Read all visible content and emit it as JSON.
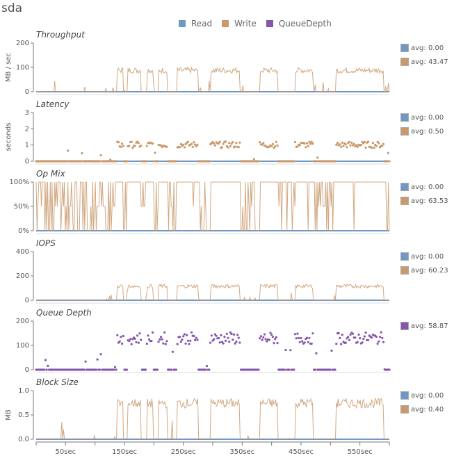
{
  "device": "sda",
  "legend": [
    {
      "name": "Read",
      "color": "#7197c4"
    },
    {
      "name": "Write",
      "color": "#c9996b"
    },
    {
      "name": "QueueDepth",
      "color": "#8656ab"
    }
  ],
  "colors": {
    "read": "#7197c4",
    "write": "#c9996b",
    "queue": "#8656ab"
  },
  "chart_data": {
    "type": "line",
    "x_unit": "sec",
    "xlim": [
      0,
      600
    ],
    "x_ticks": [
      0,
      50,
      100,
      150,
      200,
      250,
      300,
      350,
      400,
      450,
      500,
      550,
      600
    ],
    "x_tick_labels": [
      "",
      "50sec",
      "",
      "150sec",
      "",
      "250sec",
      "",
      "350sec",
      "",
      "450sec",
      "",
      "550sec",
      ""
    ],
    "active_bursts_sec": [
      [
        138,
        148
      ],
      [
        156,
        168
      ],
      [
        168,
        178
      ],
      [
        188,
        198
      ],
      [
        208,
        222
      ],
      [
        240,
        275
      ],
      [
        296,
        346
      ],
      [
        380,
        410
      ],
      [
        440,
        470
      ],
      [
        510,
        590
      ]
    ],
    "panels": [
      {
        "id": "throughput",
        "title": "Throughput",
        "ylabel": "MB / sec",
        "type": "line",
        "ylim": [
          0,
          200
        ],
        "y_ticks": [
          0,
          100,
          200
        ],
        "y_tick_labels": [
          "0",
          "100",
          "200"
        ],
        "series": [
          {
            "name": "Read",
            "avg_label": "avg: 0.00",
            "level": 0
          },
          {
            "name": "Write",
            "avg_label": "avg: 43.47",
            "level": 95
          }
        ]
      },
      {
        "id": "latency",
        "title": "Latency",
        "ylabel": "seconds",
        "type": "scatter",
        "ylim": [
          0,
          3
        ],
        "y_ticks": [
          0,
          1,
          2,
          3
        ],
        "y_tick_labels": [
          "0",
          "1",
          "2",
          "3"
        ],
        "series": [
          {
            "name": "Read",
            "avg_label": "avg: 0.00",
            "level": 0
          },
          {
            "name": "Write",
            "avg_label": "avg: 0.50",
            "level": 1.1
          }
        ]
      },
      {
        "id": "opmix",
        "title": "Op Mix",
        "ylabel": "",
        "type": "line",
        "ylim": [
          0,
          100
        ],
        "y_ticks": [
          0,
          50,
          100
        ],
        "y_tick_labels": [
          "0%",
          "50%",
          "100%"
        ],
        "series": [
          {
            "name": "Read",
            "avg_label": "avg: 0.00",
            "level": 0
          },
          {
            "name": "Write",
            "avg_label": "avg: 63.53",
            "level": 100
          }
        ]
      },
      {
        "id": "iops",
        "title": "IOPS",
        "ylabel": "",
        "type": "line",
        "ylim": [
          0,
          400
        ],
        "y_ticks": [
          0,
          200,
          400
        ],
        "y_tick_labels": [
          "0",
          "200",
          "400"
        ],
        "series": [
          {
            "name": "Read",
            "avg_label": "avg: 0.00",
            "level": 0
          },
          {
            "name": "Write",
            "avg_label": "avg: 60.23",
            "level": 125
          }
        ]
      },
      {
        "id": "queue",
        "title": "Queue Depth",
        "ylabel": "",
        "type": "scatter",
        "ylim": [
          0,
          200
        ],
        "y_ticks": [
          0,
          100,
          200
        ],
        "y_tick_labels": [
          "0",
          "100",
          "200"
        ],
        "series": [
          {
            "name": "QueueDepth",
            "avg_label": "avg: 58.87",
            "level": 140
          }
        ]
      },
      {
        "id": "blocksize",
        "title": "Block Size",
        "ylabel": "MB",
        "type": "line",
        "ylim": [
          0,
          1
        ],
        "y_ticks": [
          0,
          0.5,
          1
        ],
        "y_tick_labels": [
          "0.0",
          "0.5",
          "1.0"
        ],
        "series": [
          {
            "name": "Read",
            "avg_label": "avg: 0.00",
            "level": 0
          },
          {
            "name": "Write",
            "avg_label": "avg: 0.40",
            "level": 0.8
          }
        ]
      }
    ]
  }
}
